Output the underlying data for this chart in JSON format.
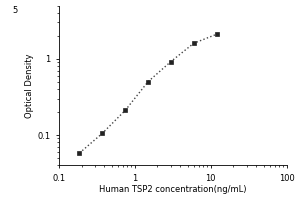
{
  "x": [
    0.188,
    0.375,
    0.75,
    1.5,
    3.0,
    6.0,
    12.0
  ],
  "y": [
    0.058,
    0.105,
    0.21,
    0.5,
    0.92,
    1.6,
    2.1
  ],
  "xlabel": "Human TSP2 concentration(ng/mL)",
  "ylabel": "Optical Density",
  "xlim": [
    0.1,
    100
  ],
  "ylim": [
    0.04,
    5
  ],
  "xticks": [
    0.1,
    1,
    10,
    100
  ],
  "xticklabels": [
    "0.1",
    "1",
    "10",
    "100"
  ],
  "yticks": [
    0.1,
    1
  ],
  "yticklabels": [
    "0.1",
    "1"
  ],
  "ytop_label": "5",
  "marker": "s",
  "marker_color": "#222222",
  "marker_size": 3,
  "line_style": ":",
  "line_color": "#444444",
  "line_width": 1.0,
  "background_color": "#ffffff",
  "font_size_label": 6,
  "font_size_tick": 6
}
